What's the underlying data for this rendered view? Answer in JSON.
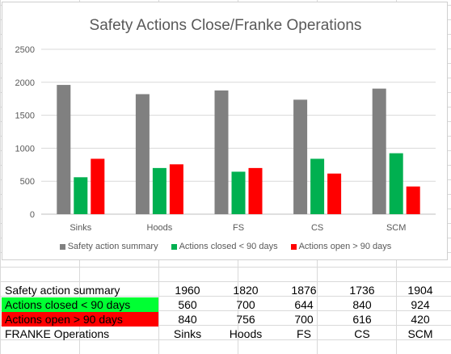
{
  "chart_data": {
    "type": "bar",
    "title": "Safety Actions Close/Franke Operations",
    "categories": [
      "Sinks",
      "Hoods",
      "FS",
      "CS",
      "SCM"
    ],
    "ylim": [
      0,
      2500
    ],
    "yticks": [
      0,
      500,
      1000,
      1500,
      2000,
      2500
    ],
    "grid": true,
    "legend_position": "bottom",
    "series": [
      {
        "name": "Safety action summary",
        "color": "#808080",
        "values": [
          1960,
          1820,
          1876,
          1736,
          1904
        ]
      },
      {
        "name": "Actions closed < 90 days",
        "color": "#00b050",
        "values": [
          560,
          700,
          644,
          840,
          924
        ]
      },
      {
        "name": "Actions open > 90 days",
        "color": "#ff0000",
        "values": [
          840,
          756,
          700,
          616,
          420
        ]
      }
    ]
  },
  "table": {
    "rows": [
      {
        "label": "Safety action summary",
        "values": [
          "1960",
          "1820",
          "1876",
          "1736",
          "1904"
        ]
      },
      {
        "label": "Actions closed < 90 days",
        "values": [
          "560",
          "700",
          "644",
          "840",
          "924"
        ]
      },
      {
        "label": "Actions open > 90 days",
        "values": [
          "840",
          "756",
          "700",
          "616",
          "420"
        ]
      },
      {
        "label": "FRANKE Operations",
        "values": [
          "Sinks",
          "Hoods",
          "FS",
          "CS",
          "SCM"
        ]
      }
    ]
  }
}
